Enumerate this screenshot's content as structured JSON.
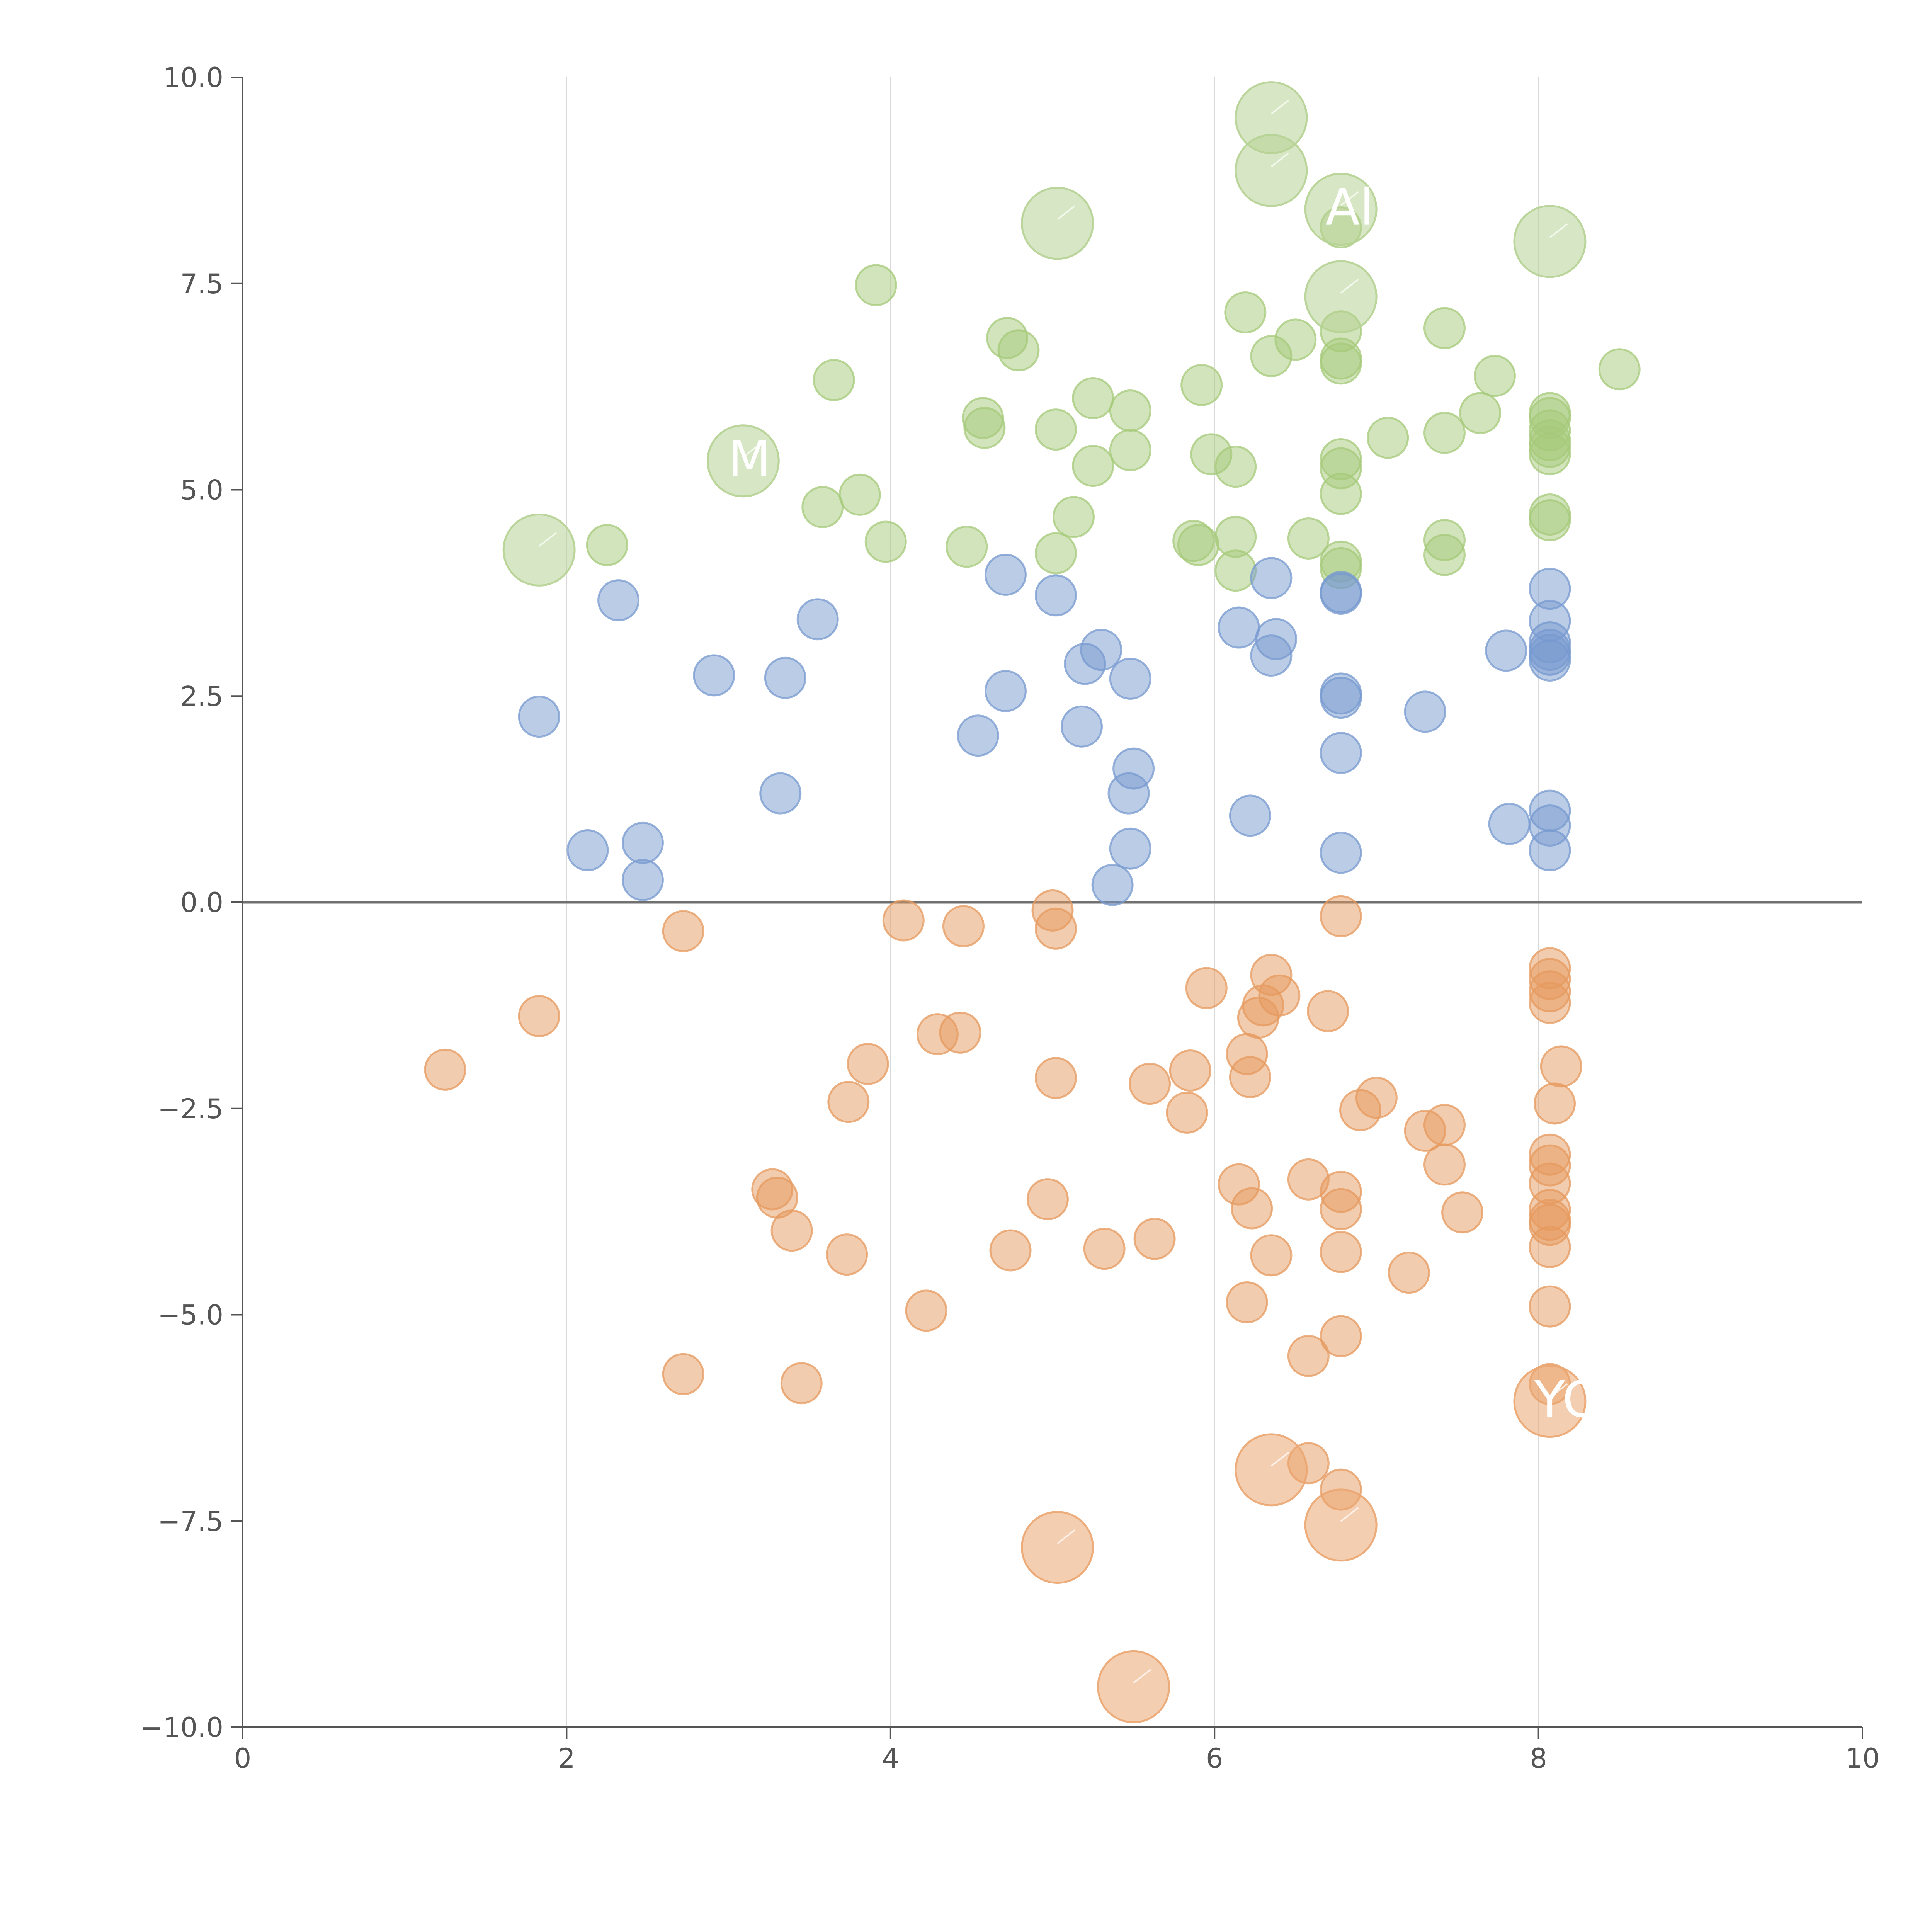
{
  "chart_data": {
    "type": "scatter",
    "title": "",
    "xlabel": "",
    "ylabel": "",
    "xlim": [
      0,
      10
    ],
    "ylim": [
      -10,
      10
    ],
    "grid": "vertical",
    "x_ticks": [
      0,
      2,
      4,
      6,
      8,
      10
    ],
    "y_ticks": [
      -10,
      -7.5,
      -5,
      -2.5,
      0,
      2.5,
      5,
      7.5,
      10
    ],
    "x_tick_labels": [
      "0",
      "2",
      "4",
      "6",
      "8",
      "10"
    ],
    "y_tick_labels": [
      "−10.0",
      "−7.5",
      "−5.0",
      "−2.5",
      "0.0",
      "2.5",
      "5.0",
      "7.5",
      "10.0"
    ],
    "colors": {
      "green": "#a6c97a",
      "blue": "#7799cf",
      "orange": "#e69a5e",
      "large_green": "#b6d293",
      "large_orange": "#eba671"
    },
    "series": [
      {
        "name": "green",
        "color": "#a6c97a",
        "points": [
          [
            2.25,
            4.33
          ],
          [
            3.91,
            7.48
          ],
          [
            3.65,
            6.33
          ],
          [
            3.58,
            4.79
          ],
          [
            3.81,
            4.94
          ],
          [
            3.97,
            4.37
          ],
          [
            4.47,
            4.31
          ],
          [
            4.57,
            5.87
          ],
          [
            4.58,
            5.75
          ],
          [
            4.72,
            6.84
          ],
          [
            4.79,
            6.69
          ],
          [
            5.02,
            5.73
          ],
          [
            5.02,
            4.23
          ],
          [
            5.13,
            4.67
          ],
          [
            5.25,
            6.11
          ],
          [
            5.25,
            5.29
          ],
          [
            5.48,
            5.96
          ],
          [
            5.48,
            5.48
          ],
          [
            5.87,
            4.38
          ],
          [
            5.9,
            4.33
          ],
          [
            5.92,
            6.27
          ],
          [
            5.98,
            5.43
          ],
          [
            6.13,
            5.28
          ],
          [
            6.13,
            4.43
          ],
          [
            6.13,
            4.02
          ],
          [
            6.19,
            7.15
          ],
          [
            6.35,
            6.62
          ],
          [
            6.5,
            6.82
          ],
          [
            6.58,
            4.41
          ],
          [
            6.78,
            6.92
          ],
          [
            6.78,
            6.59
          ],
          [
            6.78,
            6.53
          ],
          [
            6.78,
            5.37
          ],
          [
            6.78,
            5.26
          ],
          [
            6.78,
            4.95
          ],
          [
            6.78,
            4.13
          ],
          [
            6.78,
            4.05
          ],
          [
            6.78,
            8.18
          ],
          [
            7.07,
            5.63
          ],
          [
            7.42,
            6.96
          ],
          [
            7.42,
            5.69
          ],
          [
            7.42,
            4.39
          ],
          [
            7.42,
            4.21
          ],
          [
            7.64,
            5.93
          ],
          [
            7.73,
            6.38
          ],
          [
            8.07,
            5.93
          ],
          [
            8.07,
            5.87
          ],
          [
            8.07,
            5.72
          ],
          [
            8.07,
            5.52
          ],
          [
            8.07,
            5.43
          ],
          [
            8.07,
            5.6
          ],
          [
            8.07,
            4.7
          ],
          [
            8.07,
            4.63
          ],
          [
            8.5,
            6.46
          ]
        ]
      },
      {
        "name": "blue",
        "color": "#7799cf",
        "points": [
          [
            1.83,
            2.25
          ],
          [
            2.13,
            0.63
          ],
          [
            2.32,
            3.66
          ],
          [
            2.47,
            0.72
          ],
          [
            2.47,
            0.27
          ],
          [
            2.91,
            2.75
          ],
          [
            3.32,
            1.32
          ],
          [
            3.35,
            2.72
          ],
          [
            3.55,
            3.43
          ],
          [
            4.54,
            2.02
          ],
          [
            4.71,
            3.97
          ],
          [
            4.71,
            2.56
          ],
          [
            5.02,
            3.72
          ],
          [
            5.18,
            2.13
          ],
          [
            5.2,
            2.89
          ],
          [
            5.3,
            3.06
          ],
          [
            5.37,
            0.21
          ],
          [
            5.48,
            2.71
          ],
          [
            5.5,
            1.62
          ],
          [
            5.47,
            1.32
          ],
          [
            5.48,
            0.65
          ],
          [
            6.15,
            3.33
          ],
          [
            6.22,
            1.05
          ],
          [
            6.35,
            3.93
          ],
          [
            6.35,
            2.99
          ],
          [
            6.38,
            3.19
          ],
          [
            6.78,
            3.76
          ],
          [
            6.78,
            3.74
          ],
          [
            6.78,
            2.53
          ],
          [
            6.78,
            2.48
          ],
          [
            6.78,
            1.81
          ],
          [
            6.78,
            0.6
          ],
          [
            7.3,
            2.31
          ],
          [
            7.8,
            3.05
          ],
          [
            7.82,
            0.95
          ],
          [
            8.07,
            3.8
          ],
          [
            8.07,
            3.41
          ],
          [
            8.07,
            3.15
          ],
          [
            8.07,
            3.06
          ],
          [
            8.07,
            3.0
          ],
          [
            8.07,
            2.93
          ],
          [
            8.07,
            1.11
          ],
          [
            8.07,
            0.93
          ],
          [
            8.07,
            0.63
          ]
        ]
      },
      {
        "name": "orange",
        "color": "#e69a5e",
        "points": [
          [
            1.25,
            -2.03
          ],
          [
            1.83,
            -1.38
          ],
          [
            2.72,
            -0.35
          ],
          [
            2.72,
            -5.72
          ],
          [
            3.27,
            -3.48
          ],
          [
            3.3,
            -3.58
          ],
          [
            3.39,
            -3.98
          ],
          [
            3.45,
            -5.83
          ],
          [
            3.74,
            -2.42
          ],
          [
            3.73,
            -4.27
          ],
          [
            3.86,
            -1.96
          ],
          [
            4.08,
            -0.22
          ],
          [
            4.22,
            -4.95
          ],
          [
            4.29,
            -1.6
          ],
          [
            4.43,
            -1.58
          ],
          [
            4.45,
            -0.29
          ],
          [
            4.74,
            -4.22
          ],
          [
            4.97,
            -3.6
          ],
          [
            5.0,
            -0.1
          ],
          [
            5.02,
            -0.32
          ],
          [
            5.02,
            -2.13
          ],
          [
            5.32,
            -4.2
          ],
          [
            5.6,
            -2.2
          ],
          [
            5.63,
            -4.08
          ],
          [
            5.83,
            -2.55
          ],
          [
            5.85,
            -2.04
          ],
          [
            5.95,
            -1.04
          ],
          [
            6.15,
            -3.42
          ],
          [
            6.2,
            -1.84
          ],
          [
            6.2,
            -4.85
          ],
          [
            6.22,
            -2.12
          ],
          [
            6.23,
            -3.71
          ],
          [
            6.27,
            -1.4
          ],
          [
            6.3,
            -1.25
          ],
          [
            6.35,
            -0.88
          ],
          [
            6.35,
            -4.28
          ],
          [
            6.4,
            -1.13
          ],
          [
            6.58,
            -3.36
          ],
          [
            6.58,
            -5.5
          ],
          [
            6.58,
            -6.8
          ],
          [
            6.7,
            -1.32
          ],
          [
            6.78,
            -0.17
          ],
          [
            6.78,
            -3.51
          ],
          [
            6.78,
            -3.72
          ],
          [
            6.78,
            -4.24
          ],
          [
            6.78,
            -5.26
          ],
          [
            6.78,
            -7.12
          ],
          [
            6.9,
            -2.52
          ],
          [
            7.0,
            -2.37
          ],
          [
            7.2,
            -4.49
          ],
          [
            7.3,
            -2.77
          ],
          [
            7.42,
            -2.7
          ],
          [
            7.42,
            -3.18
          ],
          [
            7.53,
            -3.76
          ],
          [
            8.07,
            -0.8
          ],
          [
            8.07,
            -0.93
          ],
          [
            8.07,
            -1.08
          ],
          [
            8.07,
            -1.22
          ],
          [
            8.07,
            -3.06
          ],
          [
            8.07,
            -3.19
          ],
          [
            8.07,
            -3.41
          ],
          [
            8.07,
            -3.73
          ],
          [
            8.07,
            -3.85
          ],
          [
            8.07,
            -3.91
          ],
          [
            8.07,
            -4.18
          ],
          [
            8.07,
            -4.9
          ],
          [
            8.07,
            -5.84
          ],
          [
            8.1,
            -2.44
          ],
          [
            8.14,
            -1.99
          ]
        ]
      }
    ],
    "large_points": [
      {
        "x": 1.83,
        "y": 4.27,
        "color": "#b6d293",
        "label": ""
      },
      {
        "x": 3.09,
        "y": 5.35,
        "color": "#b6d293",
        "label": "M"
      },
      {
        "x": 5.03,
        "y": 8.23,
        "color": "#b6d293",
        "label": ""
      },
      {
        "x": 6.35,
        "y": 9.51,
        "color": "#b6d293",
        "label": ""
      },
      {
        "x": 6.35,
        "y": 8.87,
        "color": "#b6d293",
        "label": ""
      },
      {
        "x": 6.78,
        "y": 8.4,
        "color": "#b6d293",
        "label": "Al"
      },
      {
        "x": 6.78,
        "y": 7.34,
        "color": "#b6d293",
        "label": ""
      },
      {
        "x": 8.07,
        "y": 8.01,
        "color": "#b6d293",
        "label": ""
      },
      {
        "x": 8.07,
        "y": -6.05,
        "color": "#eba671",
        "label": "YC"
      },
      {
        "x": 6.35,
        "y": -6.88,
        "color": "#eba671",
        "label": ""
      },
      {
        "x": 6.78,
        "y": -7.55,
        "color": "#eba671",
        "label": ""
      },
      {
        "x": 5.03,
        "y": -7.82,
        "color": "#eba671",
        "label": ""
      },
      {
        "x": 5.5,
        "y": -9.51,
        "color": "#eba671",
        "label": ""
      }
    ]
  }
}
